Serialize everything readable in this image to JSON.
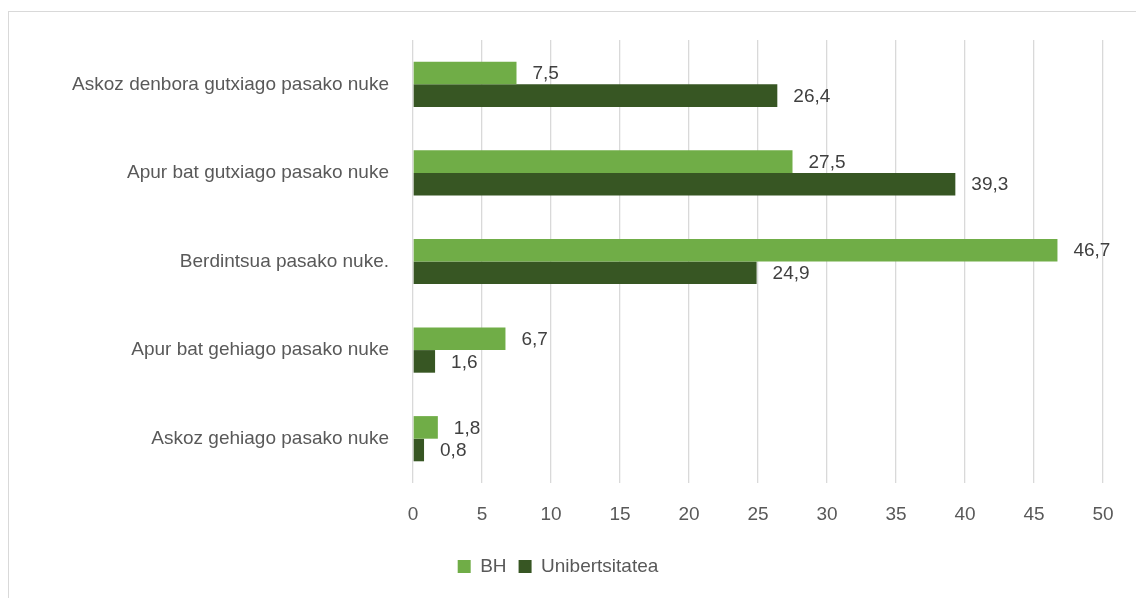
{
  "chart_data": {
    "type": "bar",
    "orientation": "horizontal",
    "categories": [
      "Askoz denbora gutxiago pasako nuke",
      "Apur bat gutxiago pasako nuke",
      "Berdintsua pasako nuke.",
      "Apur bat gehiago pasako nuke",
      "Askoz gehiago pasako nuke"
    ],
    "series": [
      {
        "name": "BH",
        "color": "#70ad47",
        "values": [
          7.5,
          27.5,
          46.7,
          6.7,
          1.8
        ],
        "value_labels": [
          "7,5",
          "27,5",
          "46,7",
          "6,7",
          "1,8"
        ]
      },
      {
        "name": "Unibertsitatea",
        "color": "#375623",
        "values": [
          26.4,
          39.3,
          24.9,
          1.6,
          0.8
        ],
        "value_labels": [
          "26,4",
          "39,3",
          "24,9",
          "1,6",
          "0,8"
        ]
      }
    ],
    "xlim": [
      0,
      50
    ],
    "xticks": [
      0,
      5,
      10,
      15,
      20,
      25,
      30,
      35,
      40,
      45,
      50
    ],
    "grid": "x",
    "legend": "bottom"
  }
}
